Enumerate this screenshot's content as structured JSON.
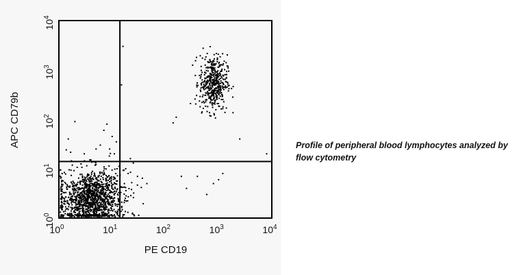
{
  "chart_data": {
    "type": "scatter",
    "title": "",
    "xlabel": "PE CD19",
    "ylabel": "APC CD79b",
    "x_scale": "log",
    "y_scale": "log",
    "xlim": [
      1,
      10000
    ],
    "ylim": [
      1,
      10000
    ],
    "grid": false,
    "x_ticks": [
      {
        "value": 1,
        "base": "10",
        "exp": "0"
      },
      {
        "value": 10,
        "base": "10",
        "exp": "1"
      },
      {
        "value": 100,
        "base": "10",
        "exp": "2"
      },
      {
        "value": 1000,
        "base": "10",
        "exp": "3"
      },
      {
        "value": 10000,
        "base": "10",
        "exp": "4"
      }
    ],
    "y_ticks": [
      {
        "value": 1,
        "base": "10",
        "exp": "0"
      },
      {
        "value": 10,
        "base": "10",
        "exp": "1"
      },
      {
        "value": 100,
        "base": "10",
        "exp": "2"
      },
      {
        "value": 1000,
        "base": "10",
        "exp": "3"
      },
      {
        "value": 10000,
        "base": "10",
        "exp": "4"
      }
    ],
    "quadrant_gates": {
      "x": 14,
      "y": 14
    },
    "populations": [
      {
        "center": [
          4,
          2.5
        ],
        "spread": [
          0.3,
          0.28
        ],
        "count": 1300
      },
      {
        "center": [
          800,
          550
        ],
        "spread": [
          0.13,
          0.28
        ],
        "count": 450
      }
    ],
    "scattered_events": [
      [
        9,
        25
      ],
      [
        10,
        45
      ],
      [
        7,
        60
      ],
      [
        8,
        80
      ],
      [
        11,
        20
      ],
      [
        12,
        35
      ],
      [
        6,
        30
      ],
      [
        15,
        500
      ],
      [
        16,
        3000
      ],
      [
        22,
        16
      ],
      [
        25,
        13
      ],
      [
        30,
        7
      ],
      [
        45,
        5
      ],
      [
        200,
        7
      ],
      [
        250,
        4
      ],
      [
        400,
        7
      ],
      [
        600,
        3
      ],
      [
        800,
        5
      ],
      [
        1000,
        6
      ],
      [
        1200,
        8
      ],
      [
        8000,
        20
      ],
      [
        2500,
        40
      ],
      [
        18,
        10
      ],
      [
        20,
        8
      ],
      [
        17,
        5
      ],
      [
        1.5,
        40
      ],
      [
        3,
        20
      ],
      [
        4,
        15
      ],
      [
        5,
        25
      ],
      [
        2,
        90
      ],
      [
        140,
        85
      ],
      [
        160,
        110
      ],
      [
        450,
        180
      ]
    ],
    "point_color": "#000000"
  },
  "caption": "Profile of peripheral blood lymphocytes analyzed by flow cytometry"
}
